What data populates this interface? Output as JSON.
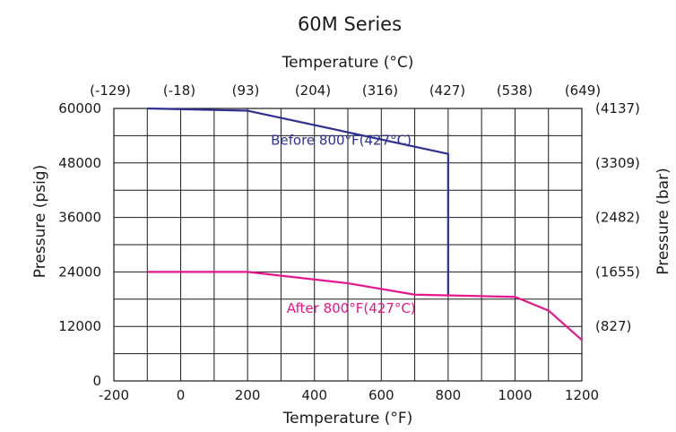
{
  "chart_data": {
    "type": "line",
    "title": "60M Series",
    "xlabel": "Temperature (°F)",
    "x2label": "Temperature (°C)",
    "ylabel": "Pressure (psig)",
    "y2label": "Pressure (bar)",
    "xlim": [
      -200,
      1200
    ],
    "ylim": [
      0,
      60000
    ],
    "x_ticks": [
      -200,
      0,
      200,
      400,
      600,
      800,
      1000,
      1200
    ],
    "x_tick_labels": [
      "-200",
      "0",
      "200",
      "400",
      "600",
      "800",
      "1000",
      "1200"
    ],
    "x2_tick_labels": [
      "(-129)",
      "(-18)",
      "(93)",
      "(204)",
      "(316)",
      "(427)",
      "(538)",
      "(649)"
    ],
    "y_ticks": [
      0,
      12000,
      24000,
      36000,
      48000,
      60000
    ],
    "y_tick_labels": [
      "0",
      "12000",
      "24000",
      "36000",
      "48000",
      "60000"
    ],
    "y2_tick_labels": [
      "(827)",
      "(1655)",
      "(2482)",
      "(3309)",
      "(4137)"
    ],
    "grid": true,
    "grid_x_step": 100,
    "grid_y_step": 6000,
    "series": [
      {
        "name": "Before 800°F(427°C)",
        "color": "#2e3192",
        "x": [
          -100,
          200,
          800,
          800
        ],
        "y": [
          60000,
          59500,
          50000,
          19000
        ]
      },
      {
        "name": "After 800°F(427°C)",
        "color": "#e6168d",
        "x": [
          -100,
          200,
          500,
          700,
          1000,
          1100,
          1200
        ],
        "y": [
          24000,
          24000,
          21500,
          19000,
          18500,
          15500,
          9000
        ]
      }
    ],
    "annotations": [
      {
        "text": "Before 800°F(427°C)",
        "x": 480,
        "y": 53000,
        "color": "#2e3192"
      },
      {
        "text": "After 800°F(427°C)",
        "x": 510,
        "y": 16000,
        "color": "#e6168d"
      }
    ]
  }
}
